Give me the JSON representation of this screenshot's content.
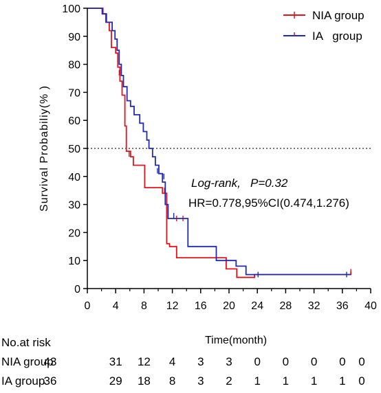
{
  "chart_data": {
    "type": "line",
    "xlabel": "Time(month)",
    "ylabel": "Survival Probabiliy(% )",
    "xlim": [
      0,
      40
    ],
    "ylim": [
      0,
      100
    ],
    "xticks": [
      "0",
      "4",
      "8",
      "12",
      "16",
      "20",
      "24",
      "28",
      "32",
      "36",
      "40"
    ],
    "yticks": [
      "0",
      "10",
      "20",
      "30",
      "40",
      "50",
      "60",
      "70",
      "80",
      "90",
      "100"
    ],
    "reference_line": {
      "y": 50,
      "style": "dotted"
    },
    "legend_position": "top-right",
    "series": [
      {
        "name": "NIA group",
        "color": "#e3121b",
        "steps": [
          [
            0,
            100
          ],
          [
            2.2,
            100
          ],
          [
            2.2,
            98
          ],
          [
            2.6,
            98
          ],
          [
            2.6,
            95
          ],
          [
            3.1,
            95
          ],
          [
            3.1,
            92
          ],
          [
            3.4,
            92
          ],
          [
            3.4,
            86
          ],
          [
            4.0,
            86
          ],
          [
            4.0,
            84
          ],
          [
            4.3,
            84
          ],
          [
            4.3,
            79
          ],
          [
            4.6,
            79
          ],
          [
            4.6,
            74
          ],
          [
            4.9,
            74
          ],
          [
            4.9,
            69
          ],
          [
            5.3,
            69
          ],
          [
            5.3,
            58
          ],
          [
            5.5,
            58
          ],
          [
            5.5,
            49
          ],
          [
            6.1,
            49
          ],
          [
            6.1,
            47
          ],
          [
            6.5,
            47
          ],
          [
            6.5,
            44
          ],
          [
            8.1,
            44
          ],
          [
            8.1,
            36
          ],
          [
            10.6,
            36
          ],
          [
            10.6,
            34
          ],
          [
            11.2,
            34
          ],
          [
            11.2,
            16
          ],
          [
            11.6,
            16
          ],
          [
            11.6,
            15
          ],
          [
            12.6,
            15
          ],
          [
            12.6,
            11
          ],
          [
            19.6,
            11
          ],
          [
            19.6,
            7
          ],
          [
            21.1,
            7
          ],
          [
            21.1,
            4
          ],
          [
            23.6,
            4
          ],
          [
            23.6,
            5
          ],
          [
            37.2,
            5
          ],
          [
            37.2,
            6
          ]
        ],
        "censor_marks": [
          [
            4.5,
            77
          ],
          [
            5.9,
            48
          ],
          [
            10.9,
            35
          ],
          [
            12.6,
            25
          ],
          [
            13.5,
            25
          ],
          [
            37.2,
            6
          ]
        ]
      },
      {
        "name": "IA group",
        "color": "#1e2ab4",
        "steps": [
          [
            0,
            100
          ],
          [
            2.1,
            100
          ],
          [
            2.1,
            98
          ],
          [
            2.7,
            98
          ],
          [
            2.7,
            95
          ],
          [
            3.5,
            95
          ],
          [
            3.5,
            92
          ],
          [
            3.9,
            92
          ],
          [
            3.9,
            89
          ],
          [
            4.2,
            89
          ],
          [
            4.2,
            85
          ],
          [
            4.5,
            85
          ],
          [
            4.5,
            80
          ],
          [
            4.8,
            80
          ],
          [
            4.8,
            76
          ],
          [
            5.1,
            76
          ],
          [
            5.1,
            72
          ],
          [
            5.6,
            72
          ],
          [
            5.6,
            67
          ],
          [
            6.1,
            67
          ],
          [
            6.1,
            65
          ],
          [
            6.6,
            65
          ],
          [
            6.6,
            62
          ],
          [
            7.4,
            62
          ],
          [
            7.4,
            59
          ],
          [
            7.9,
            59
          ],
          [
            7.9,
            56
          ],
          [
            8.4,
            56
          ],
          [
            8.4,
            53
          ],
          [
            8.7,
            53
          ],
          [
            8.7,
            50
          ],
          [
            9.2,
            50
          ],
          [
            9.2,
            47
          ],
          [
            9.6,
            47
          ],
          [
            9.6,
            44
          ],
          [
            10.1,
            44
          ],
          [
            10.1,
            41
          ],
          [
            10.6,
            41
          ],
          [
            10.6,
            38
          ],
          [
            11.0,
            38
          ],
          [
            11.0,
            30
          ],
          [
            11.4,
            30
          ],
          [
            11.4,
            25
          ],
          [
            14.2,
            25
          ],
          [
            14.2,
            15
          ],
          [
            18.2,
            15
          ],
          [
            18.2,
            10
          ],
          [
            21.0,
            10
          ],
          [
            21.0,
            8
          ],
          [
            22.4,
            8
          ],
          [
            22.4,
            5
          ],
          [
            37.2,
            5
          ]
        ],
        "censor_marks": [
          [
            9.9,
            42
          ],
          [
            10.8,
            40
          ],
          [
            12.2,
            26
          ],
          [
            24.1,
            5
          ],
          [
            36.6,
            5
          ]
        ]
      }
    ],
    "annotations": [
      "Log-rank,   P=0.32",
      "HR=0.778,95%CI(0.474,1.276)"
    ],
    "risk_table": {
      "title": "No.at risk",
      "times": [
        0,
        4,
        8,
        12,
        16,
        20,
        24,
        28,
        32,
        36,
        40
      ],
      "rows": [
        {
          "label": "NIA group",
          "counts": [
            "43",
            "31",
            "12",
            "4",
            "3",
            "3",
            "0",
            "0",
            "0",
            "0",
            "0"
          ]
        },
        {
          "label": "IA   group",
          "counts": [
            "36",
            "29",
            "18",
            "8",
            "3",
            "2",
            "1",
            "1",
            "1",
            "1",
            "0"
          ]
        }
      ]
    }
  }
}
